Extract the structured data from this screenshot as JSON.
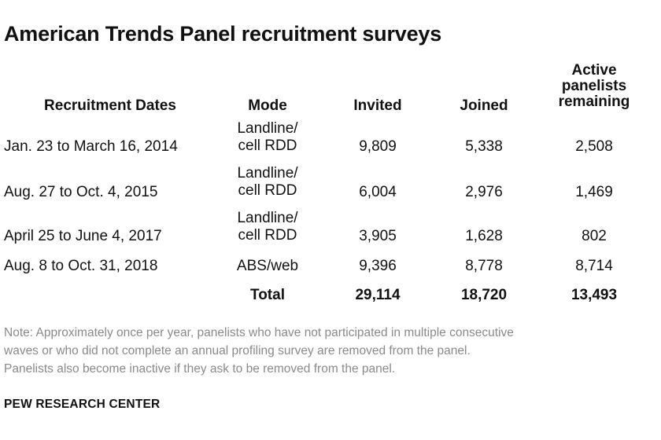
{
  "title": "American Trends Panel recruitment surveys",
  "columns": {
    "dates": "Recruitment Dates",
    "mode": "Mode",
    "invited": "Invited",
    "joined": "Joined",
    "active": [
      "Active",
      "panelists",
      "remaining"
    ]
  },
  "rows": [
    {
      "dates": "Jan. 23 to March 16, 2014",
      "mode": [
        "Landline/",
        "cell RDD"
      ],
      "invited": "9,809",
      "joined": "5,338",
      "active": "2,508"
    },
    {
      "dates": "Aug. 27 to Oct. 4, 2015",
      "mode": [
        "Landline/",
        "cell RDD"
      ],
      "invited": "6,004",
      "joined": "2,976",
      "active": "1,469"
    },
    {
      "dates": "April 25 to June 4, 2017",
      "mode": [
        "Landline/",
        "cell RDD"
      ],
      "invited": "3,905",
      "joined": "1,628",
      "active": "802"
    },
    {
      "dates": "Aug. 8 to Oct. 31, 2018",
      "mode": [
        "ABS/web"
      ],
      "invited": "9,396",
      "joined": "8,778",
      "active": "8,714"
    }
  ],
  "total": {
    "label": "Total",
    "invited": "29,114",
    "joined": "18,720",
    "active": "13,493"
  },
  "note": [
    "Note: Approximately once per year, panelists who have not participated in multiple consecutive",
    "waves or who did not complete an annual profiling survey are removed from the panel.",
    "Panelists also become inactive if they ask to be removed from the panel."
  ],
  "source": "PEW RESEARCH CENTER"
}
